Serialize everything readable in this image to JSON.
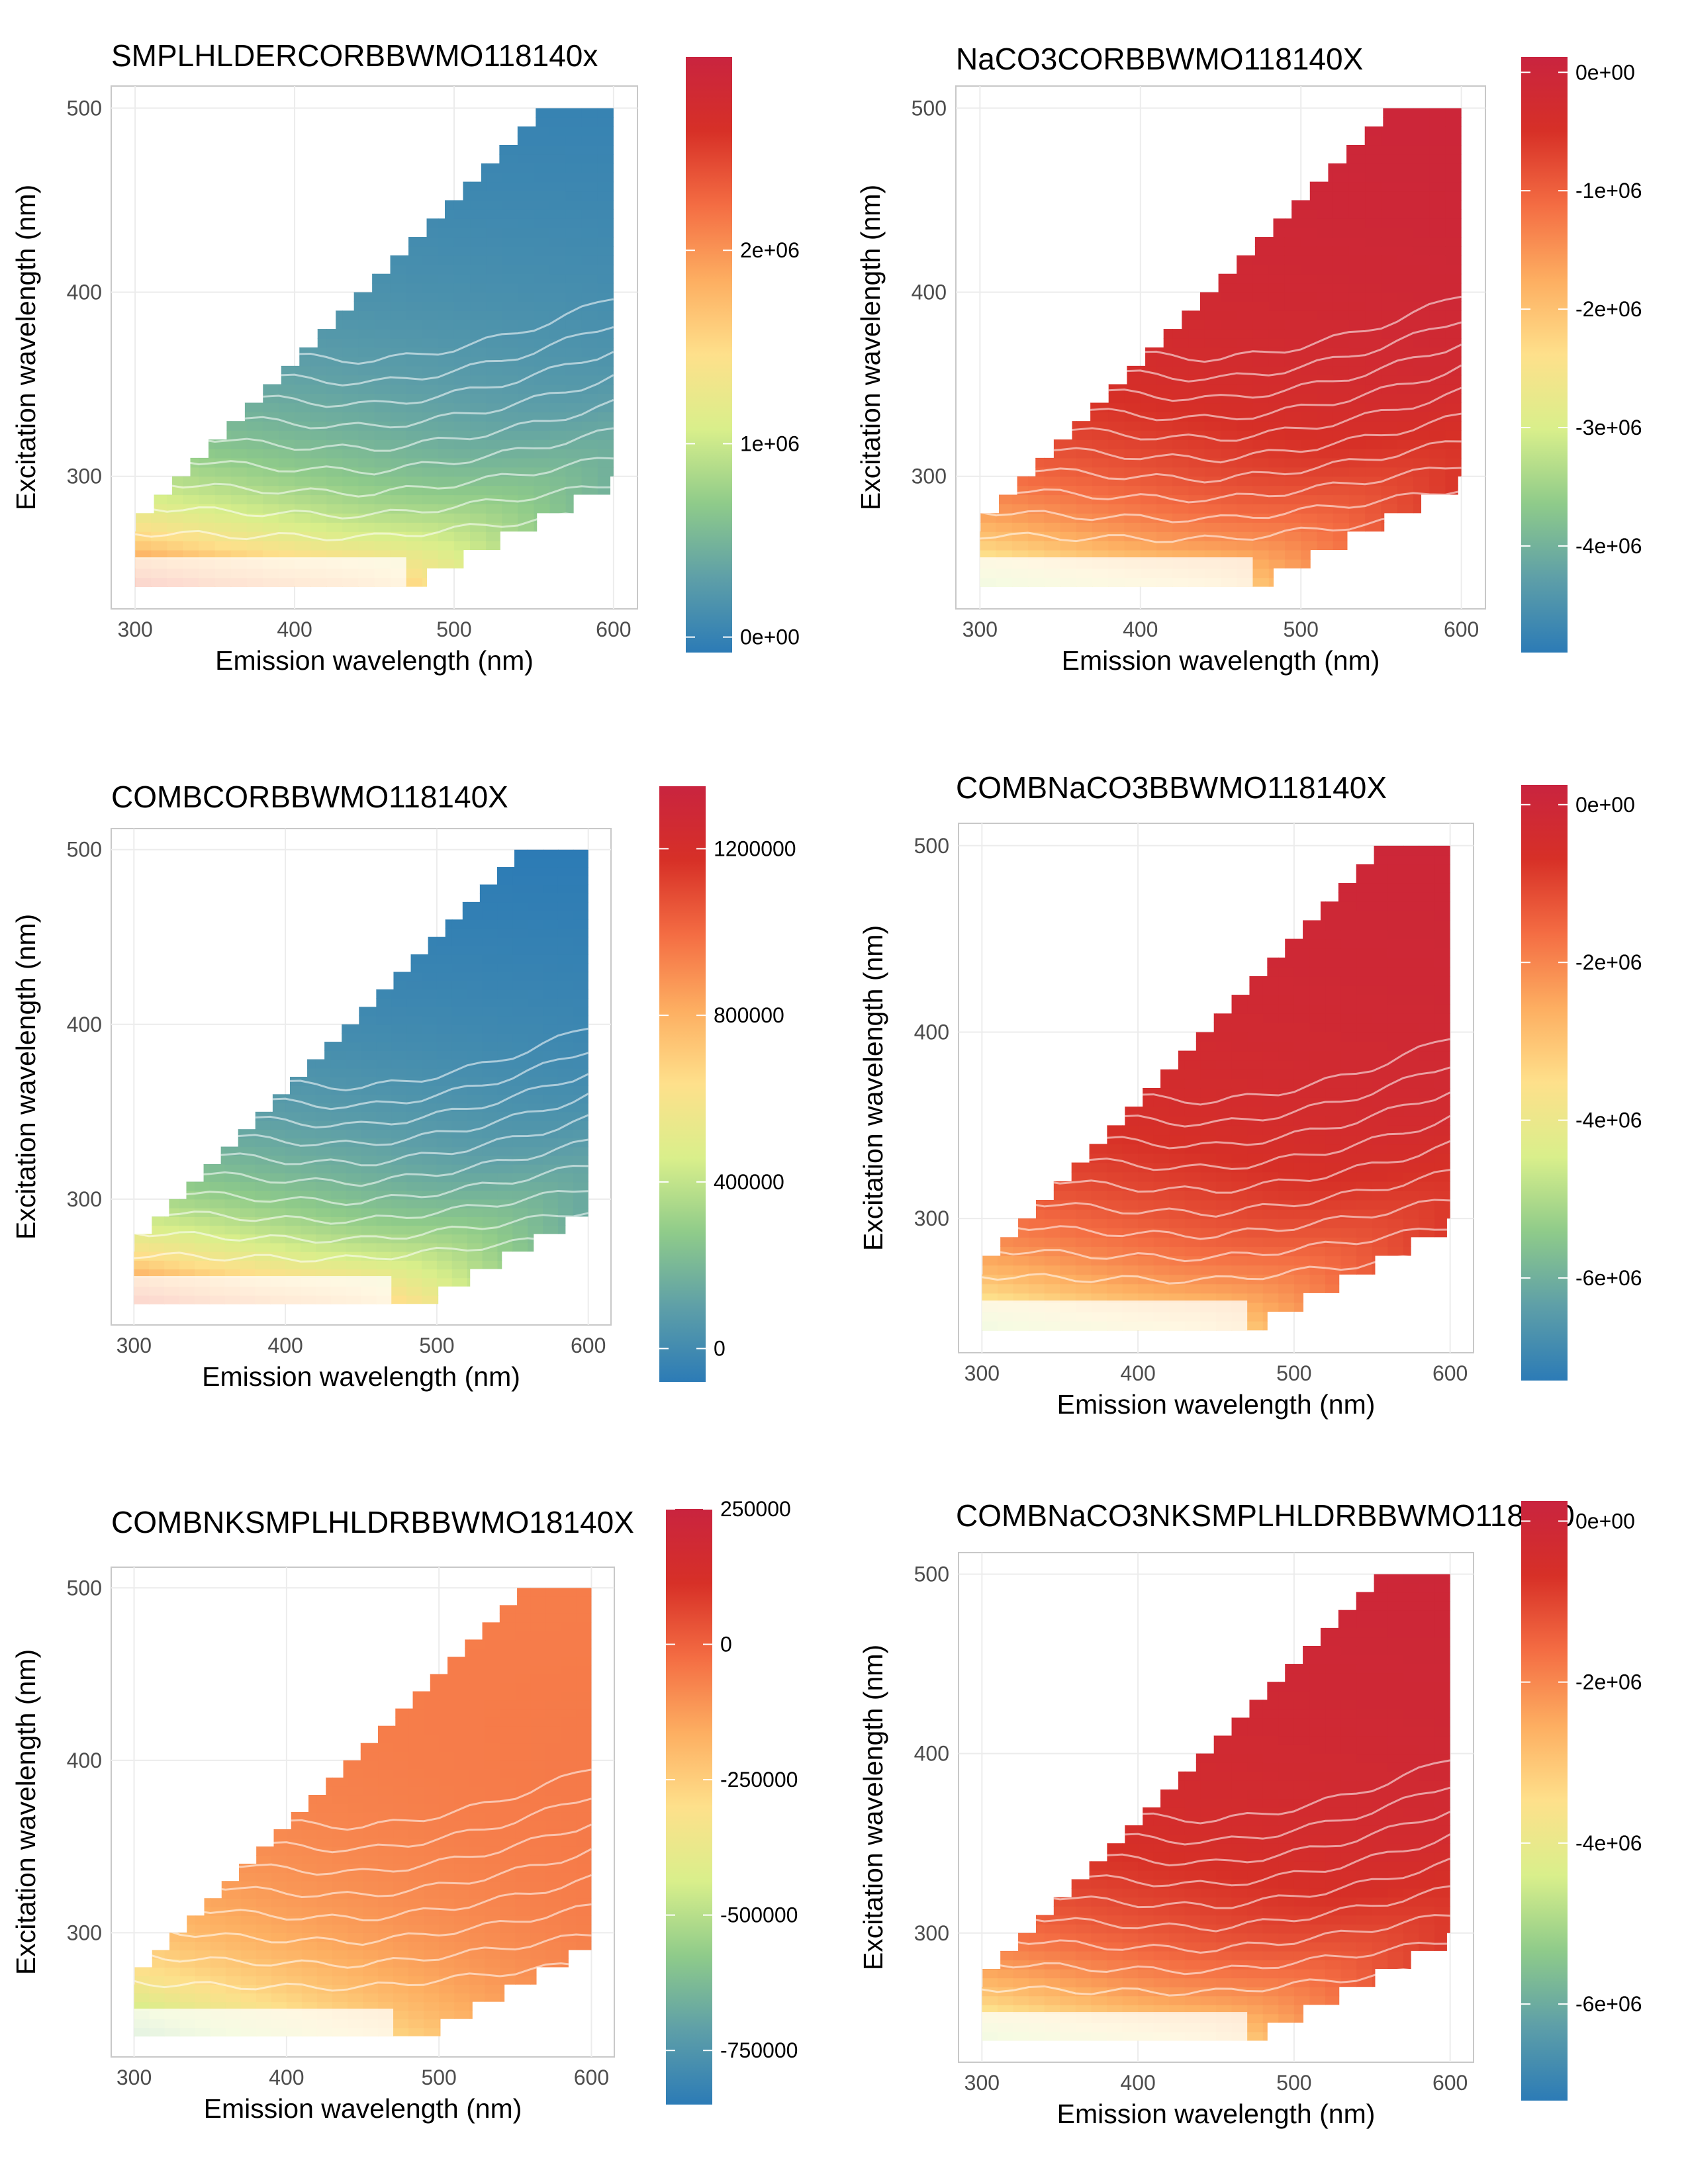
{
  "chart_data": [
    {
      "type": "heatmap",
      "title": "SMPLHLDERCORBBWMO118140x",
      "xlabel": "Emission wavelength (nm)",
      "ylabel": "Excitation wavelength (nm)",
      "x_ticks": [
        "300",
        "400",
        "500",
        "600"
      ],
      "y_ticks": [
        "300",
        "400",
        "500"
      ],
      "xlim": [
        285,
        615
      ],
      "ylim": [
        228,
        512
      ],
      "colorbar": {
        "min": -80000,
        "max": 3000000,
        "ticks": [
          {
            "label": "0e+00",
            "value": 0
          },
          {
            "label": "1e+06",
            "value": 1000000
          },
          {
            "label": "2e+06",
            "value": 2000000
          }
        ]
      },
      "data_range": {
        "min": 0,
        "max": 3000000
      },
      "region": {
        "ex_min": 240,
        "ex_max": 500,
        "em_max": 600,
        "lower_slope": 2.3,
        "lower_start": 460
      },
      "contour_levels": [
        300000,
        600000,
        900000,
        1200000,
        1500000,
        1800000,
        2100000,
        2400000,
        2700000
      ],
      "shape": "positive"
    },
    {
      "type": "heatmap",
      "title": "NaCO3CORBBWMO118140X",
      "xlabel": "Emission wavelength (nm)",
      "ylabel": "Excitation wavelength (nm)",
      "x_ticks": [
        "300",
        "400",
        "500",
        "600"
      ],
      "y_ticks": [
        "300",
        "400",
        "500"
      ],
      "xlim": [
        285,
        615
      ],
      "ylim": [
        228,
        512
      ],
      "colorbar": {
        "min": -4900000,
        "max": 130000,
        "ticks": [
          {
            "label": "0e+00",
            "value": 0
          },
          {
            "label": "-1e+06",
            "value": -1000000
          },
          {
            "label": "-2e+06",
            "value": -2000000
          },
          {
            "label": "-3e+06",
            "value": -3000000
          },
          {
            "label": "-4e+06",
            "value": -4000000
          }
        ]
      },
      "data_range": {
        "min": -4900000,
        "max": 0
      },
      "region": {
        "ex_min": 240,
        "ex_max": 500,
        "em_max": 600,
        "lower_slope": 2.3,
        "lower_start": 460
      },
      "contour_levels": [
        -300000,
        -600000,
        -900000,
        -1200000,
        -1500000,
        -1800000,
        -2100000,
        -2400000,
        -2700000,
        -3000000
      ],
      "shape": "negative"
    },
    {
      "type": "heatmap",
      "title": "COMBCORBBWMO118140X",
      "xlabel": "Emission wavelength (nm)",
      "ylabel": "Excitation wavelength (nm)",
      "x_ticks": [
        "300",
        "400",
        "500",
        "600"
      ],
      "y_ticks": [
        "300",
        "400",
        "500"
      ],
      "xlim": [
        285,
        615
      ],
      "ylim": [
        228,
        512
      ],
      "colorbar": {
        "min": -80000,
        "max": 1350000,
        "ticks": [
          {
            "label": "0",
            "value": 0
          },
          {
            "label": "400000",
            "value": 400000
          },
          {
            "label": "800000",
            "value": 800000
          },
          {
            "label": "1200000",
            "value": 1200000
          }
        ]
      },
      "data_range": {
        "min": -80000,
        "max": 1350000
      },
      "region": {
        "ex_min": 240,
        "ex_max": 500,
        "em_max": 600,
        "lower_slope": 2.1,
        "lower_start": 480
      },
      "contour_levels": [
        50000,
        150000,
        250000,
        350000,
        450000,
        550000,
        650000,
        750000,
        850000,
        950000
      ],
      "shape": "positive"
    },
    {
      "type": "heatmap",
      "title": "COMBNaCO3BBWMO118140X",
      "xlabel": "Emission wavelength (nm)",
      "ylabel": "Excitation wavelength (nm)",
      "x_ticks": [
        "300",
        "400",
        "500",
        "600"
      ],
      "y_ticks": [
        "300",
        "400",
        "500"
      ],
      "xlim": [
        285,
        615
      ],
      "ylim": [
        228,
        512
      ],
      "colorbar": {
        "min": -7300000,
        "max": 250000,
        "ticks": [
          {
            "label": "0e+00",
            "value": 0
          },
          {
            "label": "-2e+06",
            "value": -2000000
          },
          {
            "label": "-4e+06",
            "value": -4000000
          },
          {
            "label": "-6e+06",
            "value": -6000000
          }
        ]
      },
      "data_range": {
        "min": -7300000,
        "max": 0
      },
      "region": {
        "ex_min": 240,
        "ex_max": 500,
        "em_max": 600,
        "lower_slope": 2.3,
        "lower_start": 460
      },
      "contour_levels": [
        -300000,
        -700000,
        -1100000,
        -1500000,
        -1900000,
        -2300000,
        -2700000,
        -3100000,
        -3500000
      ],
      "shape": "negative"
    },
    {
      "type": "heatmap",
      "title": "COMBNKSMPLHLDRBBWMO18140X",
      "xlabel": "Emission wavelength (nm)",
      "ylabel": "Excitation wavelength (nm)",
      "x_ticks": [
        "300",
        "400",
        "500",
        "600"
      ],
      "y_ticks": [
        "300",
        "400",
        "500"
      ],
      "xlim": [
        285,
        615
      ],
      "ylim": [
        228,
        512
      ],
      "colorbar": {
        "min": -850000,
        "max": 250000,
        "ticks": [
          {
            "label": "250000",
            "value": 250000
          },
          {
            "label": "0",
            "value": 0
          },
          {
            "label": "-250000",
            "value": -250000
          },
          {
            "label": "-500000",
            "value": -500000
          },
          {
            "label": "-750000",
            "value": -750000
          }
        ]
      },
      "data_range": {
        "min": -850000,
        "max": 250000
      },
      "region": {
        "ex_min": 240,
        "ex_max": 500,
        "em_max": 600,
        "lower_slope": 2.1,
        "lower_start": 480
      },
      "contour_levels": [
        -25000,
        -50000,
        -75000,
        -100000,
        -150000,
        -200000,
        -250000,
        -300000
      ],
      "shape": "mild"
    },
    {
      "type": "heatmap",
      "title": "COMBNaCO3NKSMPLHLDRBBWMO118140",
      "xlabel": "Emission wavelength (nm)",
      "ylabel": "Excitation wavelength (nm)",
      "x_ticks": [
        "300",
        "400",
        "500",
        "600"
      ],
      "y_ticks": [
        "300",
        "400",
        "500"
      ],
      "xlim": [
        285,
        615
      ],
      "ylim": [
        228,
        512
      ],
      "colorbar": {
        "min": -7200000,
        "max": 250000,
        "ticks": [
          {
            "label": "0e+00",
            "value": 0
          },
          {
            "label": "-2e+06",
            "value": -2000000
          },
          {
            "label": "-4e+06",
            "value": -4000000
          },
          {
            "label": "-6e+06",
            "value": -6000000
          }
        ]
      },
      "data_range": {
        "min": -7200000,
        "max": 0
      },
      "region": {
        "ex_min": 240,
        "ex_max": 500,
        "em_max": 600,
        "lower_slope": 2.3,
        "lower_start": 460
      },
      "contour_levels": [
        -300000,
        -700000,
        -1100000,
        -1500000,
        -1900000,
        -2300000,
        -2700000,
        -3100000,
        -3500000
      ],
      "shape": "negative"
    }
  ],
  "colormap": [
    "#2c7bb6",
    "#5e9fa8",
    "#8fcb8a",
    "#d9ef8b",
    "#fee08b",
    "#fdae61",
    "#f46d43",
    "#d73027",
    "#c9243f"
  ]
}
